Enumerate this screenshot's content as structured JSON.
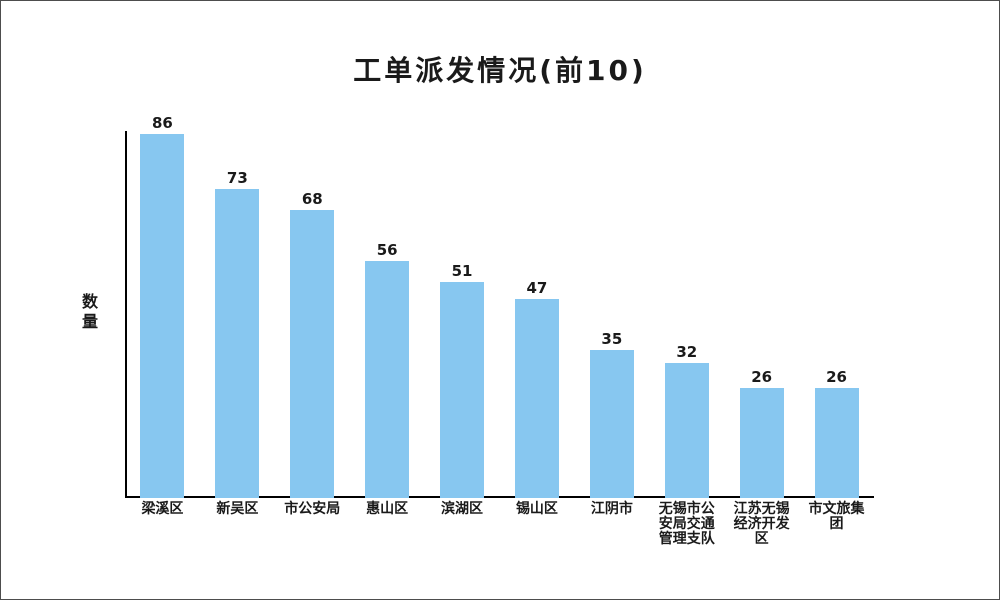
{
  "window": {
    "background": "#ffffff",
    "border_color": "#4d4d4d"
  },
  "chart_data": {
    "type": "bar",
    "title": "工单派发情况(前10)",
    "xlabel": "",
    "ylabel": "数量",
    "categories": [
      "梁溪区",
      "新吴区",
      "市公安局",
      "惠山区",
      "滨湖区",
      "锡山区",
      "江阴市",
      "无锡市公安局交通管理支队",
      "江苏无锡经济开发区",
      "市文旅集团"
    ],
    "values": [
      86,
      73,
      68,
      56,
      51,
      47,
      35,
      32,
      26,
      26
    ],
    "value_labels_shown": true,
    "bar_color": "#87C7F0",
    "axis_color": "#000000",
    "text_color": "#1a1a1a",
    "legend": "none",
    "grid": false,
    "ylim": [
      0,
      87
    ]
  }
}
